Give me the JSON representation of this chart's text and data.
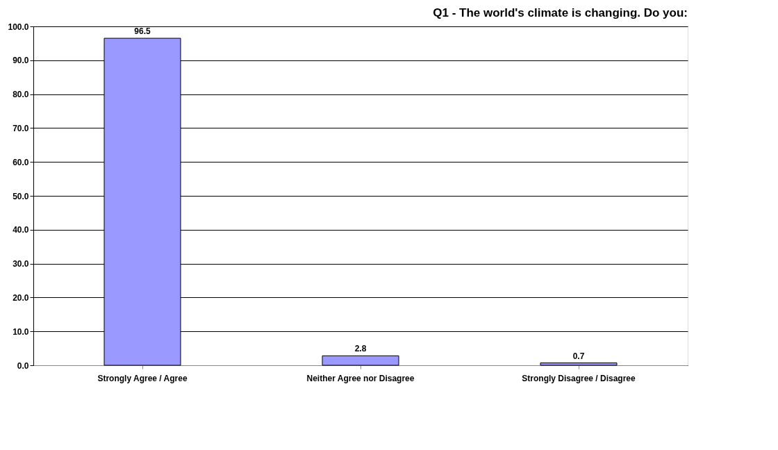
{
  "chart_data": {
    "type": "bar",
    "title": "Q1 - The world's climate is changing. Do you:",
    "categories": [
      "Strongly Agree / Agree",
      "Neither Agree nor Disagree",
      "Strongly Disagree / Disagree"
    ],
    "values": [
      96.5,
      2.8,
      0.7
    ],
    "color": "#9999ff",
    "ylim": [
      0,
      100
    ],
    "yticks": [
      {
        "value": 0,
        "label": "0.0"
      },
      {
        "value": 10,
        "label": "10.0"
      },
      {
        "value": 20,
        "label": "20.0"
      },
      {
        "value": 30,
        "label": "30.0"
      },
      {
        "value": 40,
        "label": "40.0"
      },
      {
        "value": 50,
        "label": "50.0"
      },
      {
        "value": 60,
        "label": "60.0"
      },
      {
        "value": 70,
        "label": "70.0"
      },
      {
        "value": 80,
        "label": "80.0"
      },
      {
        "value": 90,
        "label": "90.0"
      },
      {
        "value": 100,
        "label": "100.0"
      }
    ],
    "grid": "y",
    "data_labels": true
  }
}
